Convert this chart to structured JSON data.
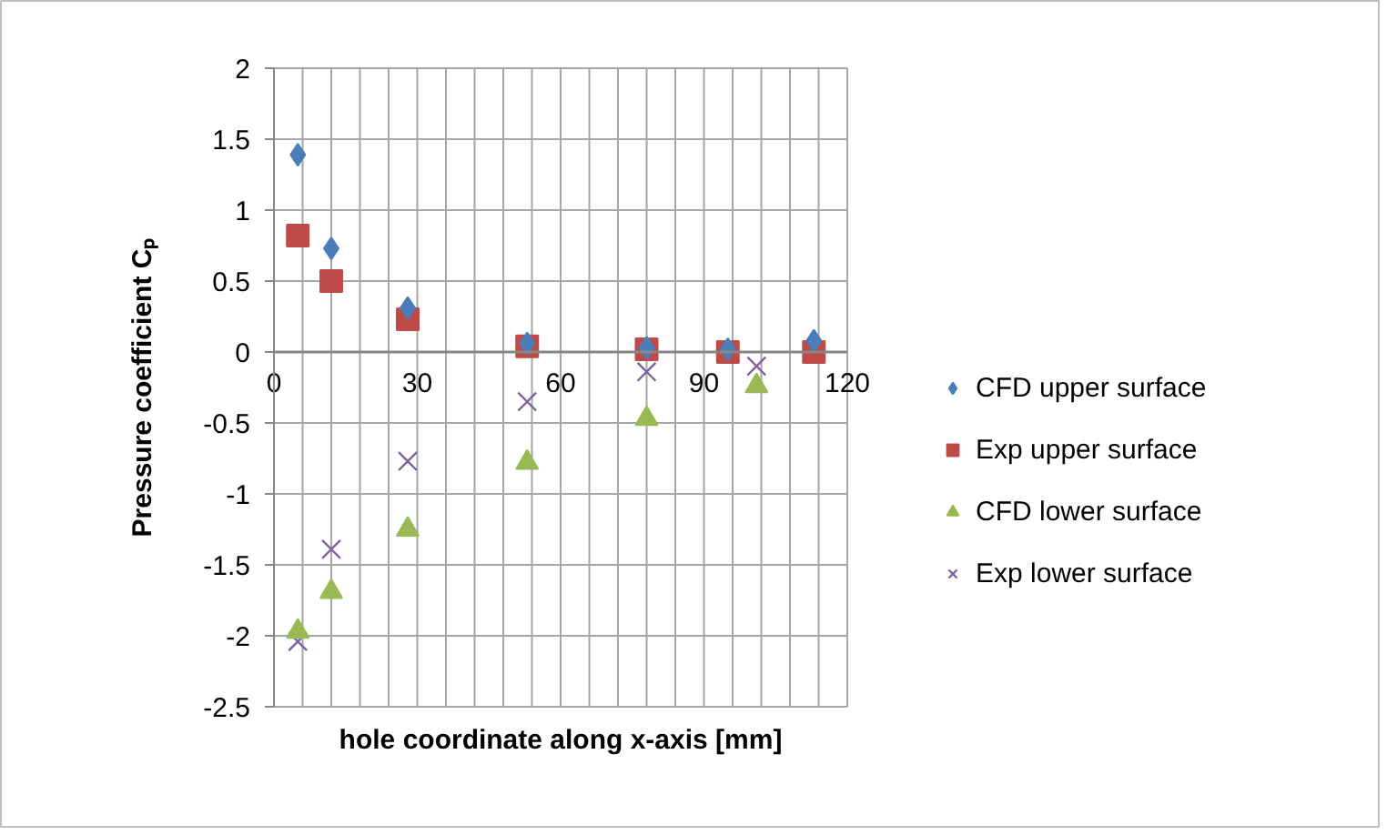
{
  "chart_data": {
    "type": "scatter",
    "xlabel": "hole coordinate along x-axis [mm]",
    "ylabel": "Pressure coefficient Cₚ",
    "xlim": [
      0,
      120
    ],
    "ylim": [
      -2.5,
      2
    ],
    "xticks": [
      0,
      {
        "value": 6,
        "label": null
      },
      {
        "value": 12,
        "label": null
      },
      {
        "value": 18,
        "label": null
      },
      {
        "value": 24,
        "label": null
      },
      30,
      {
        "value": 36,
        "label": null
      },
      {
        "value": 42,
        "label": null
      },
      {
        "value": 48,
        "label": null
      },
      {
        "value": 54,
        "label": null
      },
      60,
      {
        "value": 66,
        "label": null
      },
      {
        "value": 72,
        "label": null
      },
      {
        "value": 78,
        "label": null
      },
      {
        "value": 84,
        "label": null
      },
      90,
      {
        "value": 96,
        "label": null
      },
      {
        "value": 102,
        "label": null
      },
      {
        "value": 108,
        "label": null
      },
      {
        "value": 114,
        "label": null
      },
      120
    ],
    "yticks": [
      -2.5,
      -2,
      -1.5,
      -1,
      -0.5,
      0,
      0.5,
      1,
      1.5,
      2
    ],
    "grid": true,
    "legend": "right",
    "series": [
      {
        "name": "CFD upper surface",
        "color": "#4a7ebb",
        "marker": "diamond",
        "x": [
          5,
          12,
          28,
          53,
          78,
          95,
          113
        ],
        "values": [
          1.39,
          0.73,
          0.31,
          0.06,
          0.03,
          0.02,
          0.08
        ]
      },
      {
        "name": "Exp upper surface",
        "color": "#be4b48",
        "marker": "square",
        "x": [
          5,
          12,
          28,
          53,
          78,
          95,
          113
        ],
        "values": [
          0.82,
          0.5,
          0.23,
          0.04,
          0.02,
          0,
          0
        ]
      },
      {
        "name": "CFD lower surface",
        "color": "#98b954",
        "marker": "triangle",
        "x": [
          5,
          12,
          28,
          53,
          78,
          101
        ],
        "values": [
          -1.97,
          -1.69,
          -1.25,
          -0.78,
          -0.47,
          -0.24
        ]
      },
      {
        "name": "Exp lower surface",
        "color": "#7d60a0",
        "marker": "cross",
        "x": [
          5,
          12,
          28,
          53,
          78,
          101
        ],
        "values": [
          -2.04,
          -1.39,
          -0.77,
          -0.35,
          -0.14,
          -0.1
        ]
      }
    ]
  }
}
